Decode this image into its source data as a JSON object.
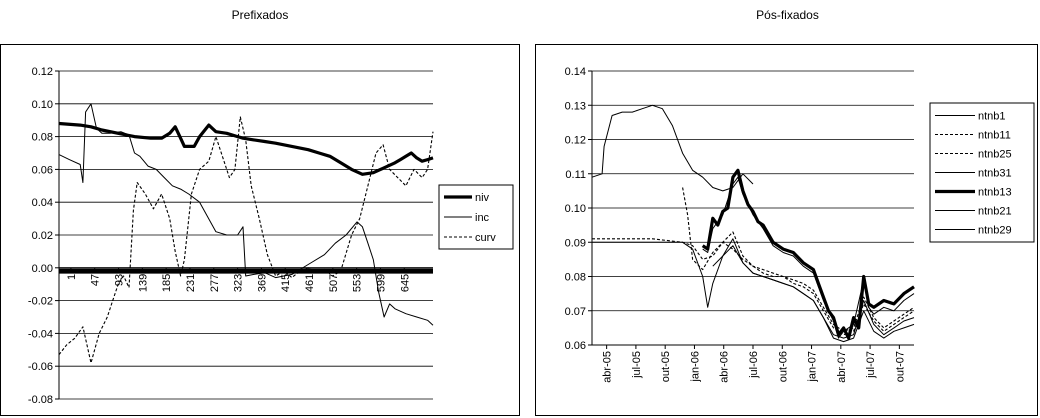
{
  "chart_data": [
    {
      "type": "line",
      "title": "Prefixados",
      "ylim": [
        -0.08,
        0.12
      ],
      "yticks": [
        "0.12",
        "0.10",
        "0.08",
        "0.06",
        "0.04",
        "0.02",
        "0.00",
        "-0.02",
        "-0.04",
        "-0.06",
        "-0.08"
      ],
      "xticks": [
        "1",
        "47",
        "93",
        "139",
        "185",
        "231",
        "277",
        "323",
        "369",
        "415",
        "461",
        "507",
        "553",
        "599",
        "645"
      ],
      "xlim": [
        1,
        690
      ],
      "grid": "horizontal",
      "legend_position": "right",
      "series": [
        {
          "name": "niv",
          "style": "thick",
          "x": [
            1,
            40,
            60,
            80,
            110,
            140,
            170,
            190,
            205,
            215,
            225,
            232,
            250,
            260,
            277,
            290,
            310,
            330,
            340,
            360,
            380,
            400,
            430,
            460,
            480,
            500,
            520,
            540,
            560,
            580,
            600,
            620,
            630,
            640,
            650,
            660,
            670,
            680,
            690
          ],
          "y": [
            0.088,
            0.087,
            0.086,
            0.084,
            0.082,
            0.08,
            0.079,
            0.079,
            0.082,
            0.086,
            0.079,
            0.074,
            0.074,
            0.08,
            0.087,
            0.083,
            0.082,
            0.08,
            0.079,
            0.078,
            0.077,
            0.076,
            0.074,
            0.072,
            0.07,
            0.068,
            0.064,
            0.06,
            0.057,
            0.058,
            0.061,
            0.064,
            0.066,
            0.068,
            0.07,
            0.067,
            0.065,
            0.066,
            0.067
          ]
        },
        {
          "name": "inc",
          "style": "thin",
          "x": [
            1,
            20,
            40,
            45,
            50,
            60,
            70,
            80,
            95,
            115,
            130,
            140,
            150,
            165,
            180,
            195,
            210,
            225,
            240,
            260,
            290,
            310,
            330,
            340,
            345,
            360,
            380,
            400,
            430,
            460,
            490,
            510,
            530,
            550,
            560,
            570,
            580,
            590,
            600,
            610,
            620,
            640,
            660,
            680,
            690
          ],
          "y": [
            0.069,
            0.066,
            0.063,
            0.052,
            0.095,
            0.1,
            0.085,
            0.082,
            0.082,
            0.083,
            0.081,
            0.07,
            0.068,
            0.062,
            0.06,
            0.055,
            0.05,
            0.048,
            0.045,
            0.04,
            0.022,
            0.02,
            0.02,
            0.025,
            -0.005,
            -0.004,
            -0.003,
            -0.006,
            -0.004,
            0.002,
            0.008,
            0.015,
            0.02,
            0.028,
            0.025,
            0.015,
            0.005,
            -0.015,
            -0.03,
            -0.022,
            -0.025,
            -0.028,
            -0.03,
            -0.032,
            -0.035
          ]
        },
        {
          "name": "curv",
          "style": "dashed",
          "x": [
            1,
            15,
            30,
            45,
            60,
            75,
            90,
            100,
            110,
            120,
            130,
            138,
            145,
            160,
            175,
            190,
            205,
            215,
            225,
            232,
            245,
            260,
            277,
            290,
            305,
            315,
            325,
            335,
            345,
            355,
            370,
            385,
            400,
            415,
            430,
            445,
            460,
            475,
            490,
            505,
            520,
            540,
            555,
            570,
            585,
            598,
            610,
            625,
            640,
            655,
            670,
            680,
            690
          ],
          "y": [
            -0.053,
            -0.047,
            -0.043,
            -0.036,
            -0.058,
            -0.04,
            -0.03,
            -0.02,
            -0.01,
            -0.005,
            -0.012,
            0.035,
            0.052,
            0.045,
            0.036,
            0.045,
            0.03,
            0.01,
            -0.005,
            0.005,
            0.045,
            0.06,
            0.065,
            0.08,
            0.065,
            0.055,
            0.06,
            0.092,
            0.078,
            0.05,
            0.03,
            0.008,
            -0.005,
            -0.002,
            -0.006,
            -0.002,
            0.0,
            -0.003,
            -0.001,
            -0.005,
            -0.002,
            0.02,
            0.03,
            0.05,
            0.07,
            0.075,
            0.06,
            0.055,
            0.05,
            0.06,
            0.055,
            0.06,
            0.083
          ]
        },
        {
          "name": "",
          "style": "zero",
          "x": [
            1,
            690
          ],
          "y": [
            -0.002,
            -0.002
          ]
        }
      ]
    },
    {
      "type": "line",
      "title": "Pós-fixados",
      "ylim": [
        0.06,
        0.14
      ],
      "yticks": [
        "0.14",
        "0.13",
        "0.12",
        "0.11",
        "0.10",
        "0.09",
        "0.08",
        "0.07",
        "0.06"
      ],
      "xticks": [
        "abr-05",
        "jul-05",
        "out-05",
        "jan-06",
        "abr-06",
        "jul-06",
        "out-06",
        "jan-07",
        "abr-07",
        "jul-07",
        "out-07"
      ],
      "xlim": [
        0,
        32
      ],
      "grid": "horizontal",
      "legend_position": "right",
      "series": [
        {
          "name": "ntnb1",
          "style": "thin",
          "x": [
            0,
            1,
            1.2,
            2,
            3,
            4,
            5,
            6,
            7,
            8,
            9,
            10,
            11,
            12,
            13,
            14,
            15,
            16
          ],
          "y": [
            0.109,
            0.11,
            0.118,
            0.127,
            0.128,
            0.128,
            0.129,
            0.13,
            0.129,
            0.124,
            0.116,
            0.111,
            0.109,
            0.106,
            0.105,
            0.106,
            0.11,
            0.107
          ]
        },
        {
          "name": "ntnb11",
          "style": "dashed",
          "x": [
            9,
            9.5,
            10,
            11,
            12,
            13,
            14,
            15,
            16,
            17,
            18,
            19,
            20,
            21,
            22,
            23,
            24,
            25,
            26,
            27,
            28,
            29,
            30,
            31,
            32
          ],
          "y": [
            0.106,
            0.098,
            0.085,
            0.082,
            0.087,
            0.09,
            0.088,
            0.085,
            0.083,
            0.081,
            0.08,
            0.08,
            0.078,
            0.077,
            0.075,
            0.07,
            0.065,
            0.063,
            0.064,
            0.072,
            0.067,
            0.064,
            0.066,
            0.068,
            0.07
          ]
        },
        {
          "name": "ntnb25",
          "style": "dashed",
          "x": [
            0,
            3,
            6,
            9,
            10,
            11,
            12,
            13,
            14,
            15,
            16,
            17,
            18,
            19,
            20,
            21,
            22,
            23,
            24,
            25,
            26,
            27,
            28,
            29,
            30,
            31,
            32
          ],
          "y": [
            0.091,
            0.091,
            0.091,
            0.09,
            0.089,
            0.085,
            0.086,
            0.09,
            0.093,
            0.086,
            0.083,
            0.082,
            0.081,
            0.08,
            0.079,
            0.078,
            0.076,
            0.071,
            0.066,
            0.064,
            0.065,
            0.074,
            0.068,
            0.065,
            0.067,
            0.069,
            0.071
          ]
        },
        {
          "name": "ntnb31",
          "style": "thin",
          "x": [
            0,
            3,
            6,
            9,
            10,
            11,
            11.5,
            12,
            13,
            14,
            15,
            16,
            17,
            18,
            19,
            20,
            21,
            22,
            23,
            24,
            25,
            26,
            27,
            28,
            29,
            30,
            31,
            32
          ],
          "y": [
            0.09,
            0.09,
            0.09,
            0.09,
            0.088,
            0.08,
            0.071,
            0.078,
            0.086,
            0.091,
            0.084,
            0.081,
            0.08,
            0.079,
            0.078,
            0.077,
            0.075,
            0.073,
            0.068,
            0.063,
            0.062,
            0.063,
            0.073,
            0.066,
            0.063,
            0.065,
            0.067,
            0.068
          ]
        },
        {
          "name": "ntnb13",
          "style": "thick",
          "x": [
            11,
            11.5,
            12,
            12.5,
            13,
            13.5,
            14,
            14.5,
            15,
            15.5,
            16,
            16.5,
            17,
            18,
            19,
            20,
            21,
            22,
            22.5,
            23,
            23.5,
            24,
            24.5,
            25,
            25.5,
            26,
            26.5,
            27,
            27.5,
            28,
            29,
            30,
            31,
            32
          ],
          "y": [
            0.089,
            0.088,
            0.097,
            0.095,
            0.099,
            0.1,
            0.109,
            0.111,
            0.105,
            0.101,
            0.099,
            0.096,
            0.095,
            0.09,
            0.088,
            0.087,
            0.084,
            0.082,
            0.078,
            0.074,
            0.07,
            0.068,
            0.063,
            0.065,
            0.062,
            0.068,
            0.065,
            0.08,
            0.072,
            0.071,
            0.073,
            0.072,
            0.075,
            0.077
          ]
        },
        {
          "name": "ntnb21",
          "style": "thin",
          "x": [
            11,
            11.5,
            12,
            13,
            14,
            14.5,
            15,
            16,
            17,
            18,
            19,
            20,
            21,
            22,
            23,
            24,
            24.5,
            25,
            26,
            27,
            27.5,
            28,
            29,
            30,
            31,
            32
          ],
          "y": [
            0.088,
            0.087,
            0.094,
            0.098,
            0.107,
            0.109,
            0.104,
            0.098,
            0.094,
            0.089,
            0.087,
            0.086,
            0.083,
            0.081,
            0.073,
            0.067,
            0.062,
            0.064,
            0.066,
            0.079,
            0.071,
            0.069,
            0.071,
            0.07,
            0.073,
            0.075
          ]
        },
        {
          "name": "ntnb29",
          "style": "thin",
          "x": [
            12,
            13,
            14,
            15,
            16,
            17,
            18,
            19,
            20,
            21,
            22,
            23,
            24,
            25,
            26,
            27,
            28,
            29,
            30,
            31,
            32
          ],
          "y": [
            0.083,
            0.086,
            0.089,
            0.084,
            0.081,
            0.08,
            0.079,
            0.078,
            0.077,
            0.075,
            0.073,
            0.068,
            0.062,
            0.061,
            0.062,
            0.07,
            0.064,
            0.062,
            0.064,
            0.065,
            0.066
          ]
        }
      ]
    }
  ]
}
